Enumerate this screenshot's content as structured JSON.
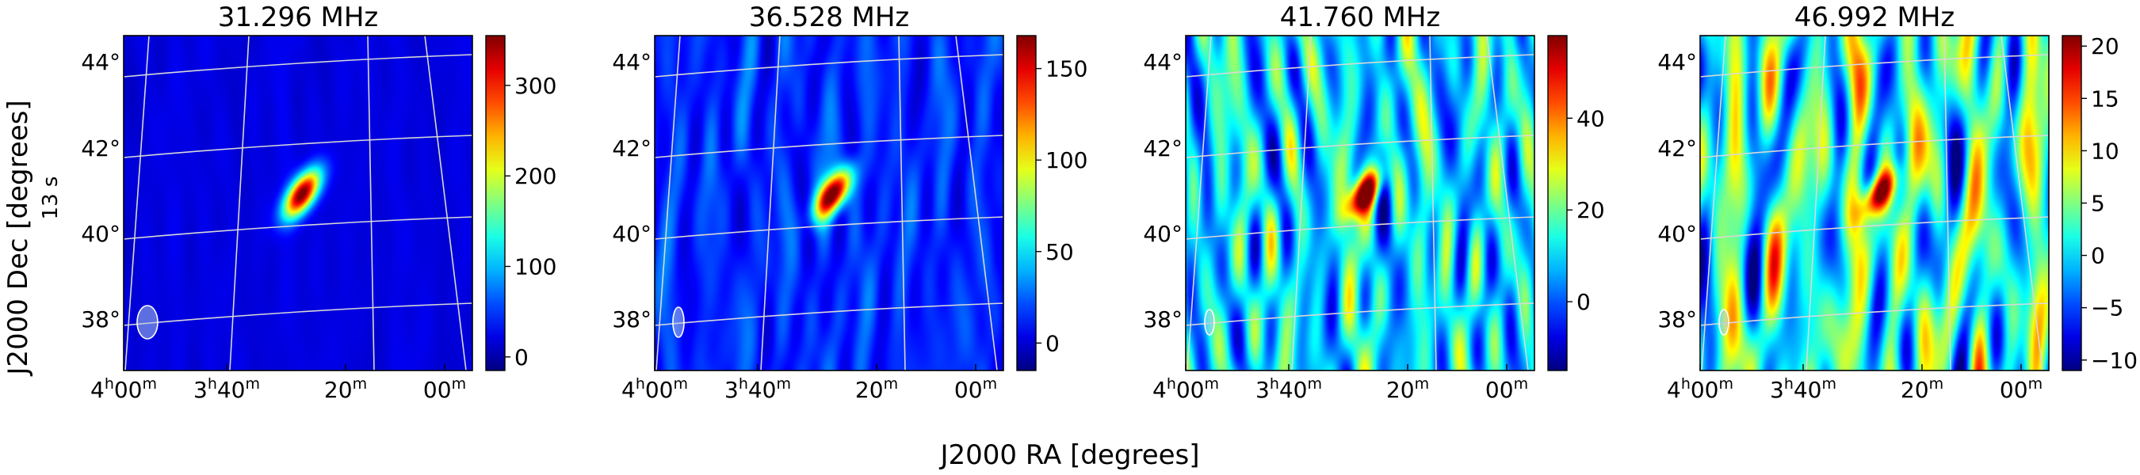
{
  "figure": {
    "ylabel": "J2000 Dec [degrees]",
    "side_note": "13 s",
    "xlabel": "J2000 RA [degrees]"
  },
  "chart_data": [
    {
      "type": "heatmap",
      "title": "31.296 MHz",
      "colormap": "jet",
      "clim": [
        -15,
        355
      ],
      "colorbar_ticks": [
        0,
        100,
        200,
        300
      ],
      "colorbar_ticklabels": [
        "0",
        "100",
        "200",
        "300"
      ],
      "background_level": 20,
      "noise_level": 4,
      "source_peak": 350,
      "beam_marker": "large",
      "x_ticklabels": [
        "4h00m",
        "3h40m",
        "20m",
        "00m"
      ],
      "y_ticklabels": [
        "44°",
        "42°",
        "40°",
        "38°"
      ]
    },
    {
      "type": "heatmap",
      "title": "36.528 MHz",
      "colormap": "jet",
      "clim": [
        -15,
        168
      ],
      "colorbar_ticks": [
        0,
        50,
        100,
        150
      ],
      "colorbar_ticklabels": [
        "0",
        "50",
        "100",
        "150"
      ],
      "background_level": 15,
      "noise_level": 7,
      "source_peak": 165,
      "beam_marker": "medium",
      "x_ticklabels": [
        "4h00m",
        "3h40m",
        "20m",
        "00m"
      ],
      "y_ticklabels": [
        "44°",
        "42°",
        "40°",
        "38°"
      ]
    },
    {
      "type": "heatmap",
      "title": "41.760 MHz",
      "colormap": "jet",
      "clim": [
        -15,
        58
      ],
      "colorbar_ticks": [
        0,
        20,
        40
      ],
      "colorbar_ticklabels": [
        "0",
        "20",
        "40"
      ],
      "background_level": 10,
      "noise_level": 9,
      "source_peak": 55,
      "beam_marker": "small",
      "x_ticklabels": [
        "4h00m",
        "3h40m",
        "20m",
        "00m"
      ],
      "y_ticklabels": [
        "44°",
        "42°",
        "40°",
        "38°"
      ]
    },
    {
      "type": "heatmap",
      "title": "46.992 MHz",
      "colormap": "jet",
      "clim": [
        -11,
        21
      ],
      "colorbar_ticks": [
        -10,
        -5,
        0,
        5,
        10,
        15,
        20
      ],
      "colorbar_ticklabels": [
        "−10",
        "−5",
        "0",
        "5",
        "10",
        "15",
        "20"
      ],
      "background_level": 2,
      "noise_level": 6,
      "source_peak": 20,
      "beam_marker": "small",
      "x_ticklabels": [
        "4h00m",
        "3h40m",
        "20m",
        "00m"
      ],
      "y_ticklabels": [
        "44°",
        "42°",
        "40°",
        "38°"
      ]
    }
  ]
}
